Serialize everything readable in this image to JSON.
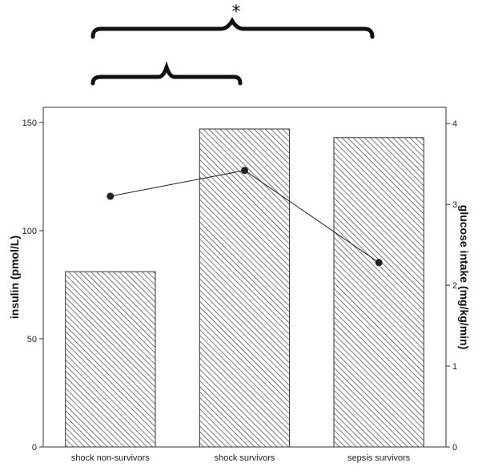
{
  "chart_data": {
    "type": "bar",
    "categories": [
      "shock non-survivors",
      "shock survivors",
      "sepsis survivors"
    ],
    "series": [
      {
        "type": "bar",
        "axis": "left",
        "values": [
          81,
          147,
          143
        ],
        "pattern": "diagonal-hatch"
      },
      {
        "type": "line",
        "axis": "right",
        "values": [
          3.1,
          3.42,
          2.28
        ],
        "marker": "filled-circle"
      }
    ],
    "ylabel": "insulin (pmol/L)",
    "y2label": "glucose intake (mg/kg/min)",
    "ylim": [
      0,
      157
    ],
    "y2lim": [
      0,
      4.2
    ],
    "yticks": [
      "0",
      "50",
      "100",
      "150"
    ],
    "y2ticks": [
      "0",
      "1",
      "2",
      "3",
      "4"
    ],
    "grid": false,
    "annotations": [
      {
        "text": "*",
        "spans": [
          "shock non-survivors",
          "sepsis survivors"
        ]
      },
      {
        "text": "",
        "spans": [
          "shock non-survivors",
          "shock survivors"
        ]
      }
    ],
    "colors": {
      "bar_fill": "#ffffff",
      "hatch": "#333333",
      "line": "#222222",
      "marker": "#222222",
      "axis": "#333333"
    }
  }
}
